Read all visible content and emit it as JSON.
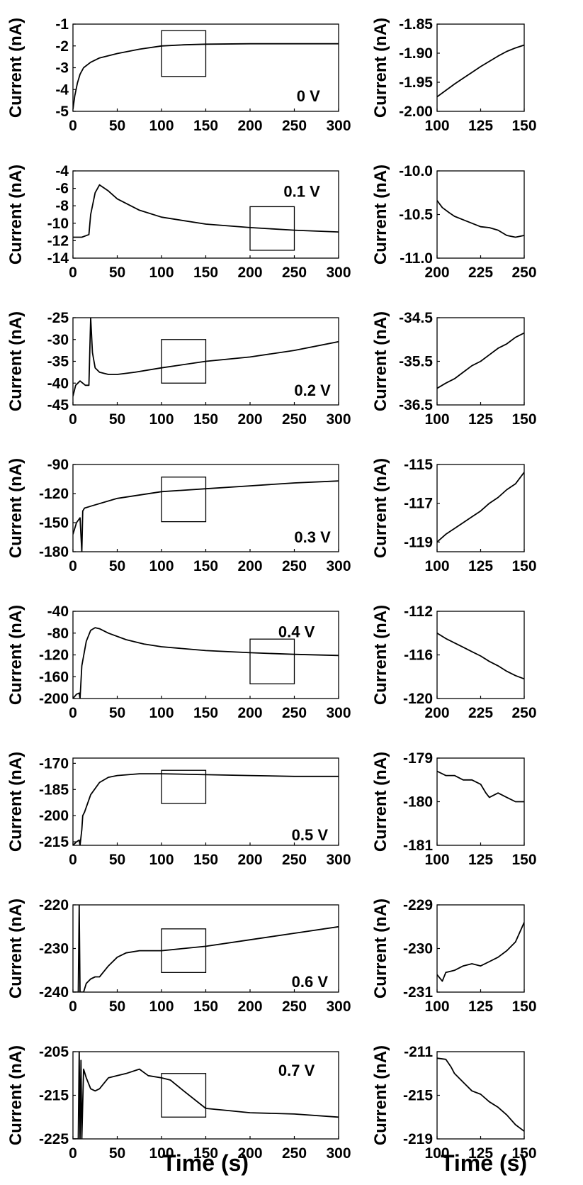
{
  "figure": {
    "xlabel_main": "Time (s)",
    "xlabel_zoom": "Time (s)",
    "ylabel": "Current (nA)"
  },
  "chart_data": [
    {
      "type": "line",
      "panel": "main",
      "voltage_label": "0 V",
      "title": "",
      "xlabel": "Time (s)",
      "ylabel": "Current (nA)",
      "xlim": [
        0,
        300
      ],
      "ylim": [
        -5,
        -1
      ],
      "xticks": [
        0,
        50,
        100,
        150,
        200,
        250,
        300
      ],
      "yticks": [
        -1,
        -2,
        -3,
        -4,
        -5
      ],
      "x": [
        0,
        2,
        5,
        8,
        12,
        20,
        30,
        50,
        75,
        100,
        125,
        150,
        200,
        250,
        300
      ],
      "y": [
        -4.9,
        -4.3,
        -3.7,
        -3.3,
        -3.0,
        -2.75,
        -2.55,
        -2.35,
        -2.15,
        -2.0,
        -1.95,
        -1.92,
        -1.9,
        -1.9,
        -1.9
      ],
      "zoom_box": {
        "x": [
          100,
          150
        ],
        "y": [
          -3.4,
          -1.3
        ]
      }
    },
    {
      "type": "line",
      "panel": "zoom",
      "voltage_label": "0 V",
      "xlabel": "Time (s)",
      "ylabel": "Current (nA)",
      "xlim": [
        100,
        150
      ],
      "ylim": [
        -2.0,
        -1.85
      ],
      "xticks": [
        100,
        125,
        150
      ],
      "yticks": [
        "-1.85",
        "-1.90",
        "-1.95",
        "-2.00"
      ],
      "x": [
        100,
        105,
        110,
        115,
        120,
        125,
        130,
        135,
        140,
        145,
        150
      ],
      "y": [
        -1.975,
        -1.964,
        -1.953,
        -1.943,
        -1.933,
        -1.923,
        -1.914,
        -1.905,
        -1.897,
        -1.891,
        -1.886
      ]
    },
    {
      "type": "line",
      "panel": "main",
      "voltage_label": "0.1 V",
      "xlabel": "Time (s)",
      "ylabel": "Current (nA)",
      "xlim": [
        0,
        300
      ],
      "ylim": [
        -14,
        -4
      ],
      "xticks": [
        0,
        50,
        100,
        150,
        200,
        250,
        300
      ],
      "yticks": [
        -4,
        -6,
        -8,
        -10,
        -12,
        -14
      ],
      "x": [
        0,
        10,
        18,
        20,
        25,
        30,
        40,
        50,
        75,
        100,
        150,
        200,
        250,
        300
      ],
      "y": [
        -11.6,
        -11.6,
        -11.3,
        -9.0,
        -6.5,
        -5.6,
        -6.3,
        -7.2,
        -8.5,
        -9.3,
        -10.1,
        -10.5,
        -10.8,
        -11.0
      ],
      "zoom_box": {
        "x": [
          200,
          250
        ],
        "y": [
          -13.1,
          -8.1
        ]
      }
    },
    {
      "type": "line",
      "panel": "zoom",
      "voltage_label": "0.1 V",
      "xlabel": "Time (s)",
      "ylabel": "Current (nA)",
      "xlim": [
        200,
        250
      ],
      "ylim": [
        -11.0,
        -10.0
      ],
      "xticks": [
        200,
        225,
        250
      ],
      "yticks": [
        "-10.0",
        "-10.5",
        "-11.0"
      ],
      "x": [
        200,
        203,
        207,
        210,
        215,
        220,
        225,
        230,
        235,
        240,
        245,
        250
      ],
      "y": [
        -10.34,
        -10.42,
        -10.48,
        -10.52,
        -10.56,
        -10.6,
        -10.64,
        -10.65,
        -10.68,
        -10.74,
        -10.76,
        -10.74
      ]
    },
    {
      "type": "line",
      "panel": "main",
      "voltage_label": "0.2 V",
      "xlabel": "Time (s)",
      "ylabel": "Current (nA)",
      "xlim": [
        0,
        300
      ],
      "ylim": [
        -45,
        -25
      ],
      "xticks": [
        0,
        50,
        100,
        150,
        200,
        250,
        300
      ],
      "yticks": [
        -25,
        -30,
        -35,
        -40,
        -45
      ],
      "x": [
        0,
        3,
        8,
        14,
        18,
        20,
        22,
        25,
        30,
        40,
        50,
        70,
        100,
        150,
        200,
        250,
        300
      ],
      "y": [
        -43,
        -40.5,
        -39.5,
        -40.5,
        -40.5,
        -25,
        -33,
        -36.5,
        -37.5,
        -38,
        -38,
        -37.5,
        -36.5,
        -35,
        -34,
        -32.5,
        -30.5
      ],
      "zoom_box": {
        "x": [
          100,
          150
        ],
        "y": [
          -40,
          -30
        ]
      }
    },
    {
      "type": "line",
      "panel": "zoom",
      "voltage_label": "0.2 V",
      "xlabel": "Time (s)",
      "ylabel": "Current (nA)",
      "xlim": [
        100,
        150
      ],
      "ylim": [
        -36.5,
        -34.5
      ],
      "xticks": [
        100,
        125,
        150
      ],
      "yticks": [
        "-34.5",
        "-35.5",
        "-36.5"
      ],
      "x": [
        100,
        105,
        110,
        115,
        120,
        125,
        130,
        135,
        140,
        145,
        150
      ],
      "y": [
        -36.12,
        -36.0,
        -35.9,
        -35.75,
        -35.6,
        -35.5,
        -35.35,
        -35.2,
        -35.1,
        -34.95,
        -34.85
      ]
    },
    {
      "type": "line",
      "panel": "main",
      "voltage_label": "0.3 V",
      "xlabel": "Time (s)",
      "ylabel": "Current (nA)",
      "xlim": [
        0,
        300
      ],
      "ylim": [
        -180,
        -90
      ],
      "xticks": [
        0,
        50,
        100,
        150,
        200,
        250,
        300
      ],
      "yticks": [
        -90,
        -120,
        -150,
        -180
      ],
      "x": [
        0,
        4,
        8,
        10,
        11,
        13,
        20,
        50,
        100,
        150,
        200,
        250,
        300
      ],
      "y": [
        -162,
        -150,
        -145,
        -180,
        -138,
        -135,
        -133,
        -125,
        -118,
        -115,
        -112,
        -109,
        -107
      ],
      "zoom_box": {
        "x": [
          100,
          150
        ],
        "y": [
          -149,
          -103
        ]
      }
    },
    {
      "type": "line",
      "panel": "zoom",
      "voltage_label": "0.3 V",
      "xlabel": "Time (s)",
      "ylabel": "Current (nA)",
      "xlim": [
        100,
        150
      ],
      "ylim": [
        -119.5,
        -115
      ],
      "xticks": [
        100,
        125,
        150
      ],
      "yticks": [
        "-115",
        "-117",
        "-119"
      ],
      "x": [
        100,
        105,
        110,
        115,
        120,
        125,
        130,
        135,
        140,
        145,
        150
      ],
      "y": [
        -119.0,
        -118.6,
        -118.3,
        -118.0,
        -117.7,
        -117.4,
        -117.0,
        -116.7,
        -116.3,
        -116.0,
        -115.4
      ]
    },
    {
      "type": "line",
      "panel": "main",
      "voltage_label": "0.4 V",
      "xlabel": "Time (s)",
      "ylabel": "Current (nA)",
      "xlim": [
        0,
        300
      ],
      "ylim": [
        -200,
        -40
      ],
      "xticks": [
        0,
        50,
        100,
        150,
        200,
        250,
        300
      ],
      "yticks": [
        -40,
        -80,
        -120,
        -160,
        -200
      ],
      "x": [
        0,
        4,
        7,
        8,
        10,
        15,
        20,
        25,
        30,
        40,
        60,
        80,
        100,
        150,
        200,
        250,
        300
      ],
      "y": [
        -200,
        -192,
        -190,
        -200,
        -140,
        -95,
        -75,
        -70,
        -72,
        -80,
        -92,
        -100,
        -105,
        -112,
        -116,
        -119,
        -121
      ],
      "zoom_box": {
        "x": [
          200,
          250
        ],
        "y": [
          -173,
          -91
        ]
      }
    },
    {
      "type": "line",
      "panel": "zoom",
      "voltage_label": "0.4 V",
      "xlabel": "Time (s)",
      "ylabel": "Current (nA)",
      "xlim": [
        200,
        250
      ],
      "ylim": [
        -120,
        -112
      ],
      "xticks": [
        200,
        225,
        250
      ],
      "yticks": [
        "-112",
        "-116",
        "-120"
      ],
      "x": [
        200,
        205,
        210,
        215,
        220,
        225,
        230,
        235,
        240,
        245,
        250
      ],
      "y": [
        -114.0,
        -114.5,
        -114.9,
        -115.3,
        -115.7,
        -116.1,
        -116.6,
        -117.0,
        -117.5,
        -117.9,
        -118.2
      ]
    },
    {
      "type": "line",
      "panel": "main",
      "voltage_label": "0.5 V",
      "xlabel": "Time (s)",
      "ylabel": "Current (nA)",
      "xlim": [
        0,
        300
      ],
      "ylim": [
        -217,
        -167
      ],
      "xticks": [
        0,
        50,
        100,
        150,
        200,
        250,
        300
      ],
      "yticks": [
        -170,
        -185,
        -200,
        -215
      ],
      "x": [
        0,
        4,
        7,
        8,
        10,
        11,
        13,
        20,
        30,
        40,
        50,
        75,
        100,
        150,
        200,
        250,
        300
      ],
      "y": [
        -217,
        -215,
        -214,
        -217,
        -208,
        -200,
        -198,
        -188,
        -181,
        -178,
        -177,
        -176,
        -176,
        -176.5,
        -177,
        -177.5,
        -177.5
      ],
      "zoom_box": {
        "x": [
          100,
          150
        ],
        "y": [
          -193,
          -174
        ]
      }
    },
    {
      "type": "line",
      "panel": "zoom",
      "voltage_label": "0.5 V",
      "xlabel": "Time (s)",
      "ylabel": "Current (nA)",
      "xlim": [
        100,
        150
      ],
      "ylim": [
        -181,
        -179
      ],
      "xticks": [
        100,
        125,
        150
      ],
      "yticks": [
        "-179",
        "-180",
        "-181"
      ],
      "x": [
        100,
        105,
        110,
        115,
        120,
        125,
        128,
        130,
        135,
        140,
        145,
        150
      ],
      "y": [
        -179.3,
        -179.4,
        -179.4,
        -179.5,
        -179.5,
        -179.6,
        -179.8,
        -179.9,
        -179.8,
        -179.9,
        -180.0,
        -180.0
      ]
    },
    {
      "type": "line",
      "panel": "main",
      "voltage_label": "0.6 V",
      "xlabel": "Time (s)",
      "ylabel": "Current (nA)",
      "xlim": [
        0,
        300
      ],
      "ylim": [
        -240,
        -220
      ],
      "xticks": [
        0,
        50,
        100,
        150,
        200,
        250,
        300
      ],
      "yticks": [
        -220,
        -230,
        -240
      ],
      "x": [
        0,
        6,
        7,
        8,
        10,
        12,
        15,
        20,
        25,
        30,
        40,
        50,
        60,
        75,
        100,
        150,
        200,
        250,
        300
      ],
      "y": [
        -240,
        -240,
        -220,
        -240,
        -240,
        -240,
        -238,
        -237,
        -236.5,
        -236.5,
        -234,
        -232,
        -231,
        -230.5,
        -230.5,
        -229.5,
        -228,
        -226.5,
        -225
      ],
      "zoom_box": {
        "x": [
          100,
          150
        ],
        "y": [
          -235.5,
          -225.5
        ]
      }
    },
    {
      "type": "line",
      "panel": "zoom",
      "voltage_label": "0.6 V",
      "xlabel": "Time (s)",
      "ylabel": "Current (nA)",
      "xlim": [
        100,
        150
      ],
      "ylim": [
        -231,
        -229
      ],
      "xticks": [
        100,
        125,
        150
      ],
      "yticks": [
        "-229",
        "-230",
        "-231"
      ],
      "x": [
        100,
        103,
        105,
        110,
        115,
        120,
        125,
        130,
        135,
        140,
        145,
        150
      ],
      "y": [
        -230.6,
        -230.75,
        -230.55,
        -230.5,
        -230.4,
        -230.35,
        -230.4,
        -230.3,
        -230.2,
        -230.05,
        -229.85,
        -229.4
      ]
    },
    {
      "type": "line",
      "panel": "main",
      "voltage_label": "0.7 V",
      "xlabel": "Time (s)",
      "ylabel": "Current (nA)",
      "xlim": [
        0,
        300
      ],
      "ylim": [
        -225,
        -205
      ],
      "xticks": [
        0,
        50,
        100,
        150,
        200,
        250,
        300
      ],
      "yticks": [
        -205,
        -215,
        -225
      ],
      "x": [
        0,
        6,
        7,
        8,
        9,
        10,
        12,
        15,
        20,
        25,
        30,
        40,
        50,
        60,
        75,
        85,
        100,
        110,
        125,
        150,
        175,
        200,
        250,
        300
      ],
      "y": [
        -225,
        -225,
        -205,
        -225,
        -207,
        -225,
        -209,
        -211,
        -213.5,
        -214,
        -213.5,
        -211,
        -210.5,
        -210,
        -209,
        -210.5,
        -211,
        -211.5,
        -214,
        -218,
        -218.5,
        -219,
        -219.3,
        -220
      ],
      "zoom_box": {
        "x": [
          100,
          150
        ],
        "y": [
          -220,
          -210
        ]
      }
    },
    {
      "type": "line",
      "panel": "zoom",
      "voltage_label": "0.7 V",
      "xlabel": "Time (s)",
      "ylabel": "Current (nA)",
      "xlim": [
        100,
        150
      ],
      "ylim": [
        -219,
        -211
      ],
      "xticks": [
        100,
        125,
        150
      ],
      "yticks": [
        "-211",
        "-215",
        "-219"
      ],
      "x": [
        100,
        105,
        108,
        110,
        115,
        120,
        125,
        130,
        135,
        140,
        145,
        150
      ],
      "y": [
        -211.6,
        -211.7,
        -212.4,
        -213.0,
        -213.8,
        -214.6,
        -214.9,
        -215.6,
        -216.1,
        -216.8,
        -217.7,
        -218.3
      ]
    }
  ]
}
